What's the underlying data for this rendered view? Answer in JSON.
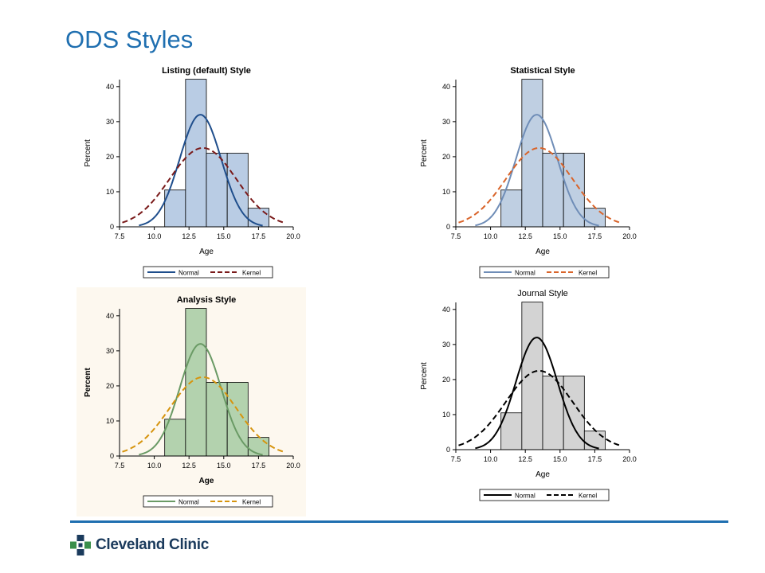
{
  "slide": {
    "title": "ODS Styles",
    "footer_logo_text": "Cleveland Clinic"
  },
  "chart_data": [
    {
      "type": "histogram",
      "title": "Listing (default) Style",
      "title_bold": true,
      "xlabel": "Age",
      "ylabel": "Percent",
      "xlim": [
        7.5,
        20.0
      ],
      "ylim": [
        0,
        42
      ],
      "xticks": [
        "7.5",
        "10.0",
        "12.5",
        "15.0",
        "17.5",
        "20.0"
      ],
      "yticks": [
        "0",
        "10",
        "20",
        "30",
        "40"
      ],
      "bins": [
        {
          "x0": 10.75,
          "x1": 12.25,
          "value": 10.5
        },
        {
          "x0": 12.25,
          "x1": 13.75,
          "value": 42.1
        },
        {
          "x0": 13.75,
          "x1": 15.25,
          "value": 21.0
        },
        {
          "x0": 15.25,
          "x1": 16.75,
          "value": 21.0
        },
        {
          "x0": 16.75,
          "x1": 18.25,
          "value": 5.3
        }
      ],
      "normal": {
        "mean": 13.32,
        "std": 1.49,
        "range": [
          8.9,
          17.8
        ],
        "peak": 32.0
      },
      "kernel": {
        "mean": 13.5,
        "std": 2.4,
        "range": [
          7.7,
          19.4
        ],
        "peak": 22.5
      },
      "legend": [
        {
          "label": "Normal"
        },
        {
          "label": "Kernel"
        }
      ],
      "colors": {
        "fill": "#b9cce4",
        "normal": "#1f4e8c",
        "kernel": "#7a1a1a",
        "axis": "#000000"
      },
      "bold_axis_labels": false
    },
    {
      "type": "histogram",
      "title": "Statistical Style",
      "title_bold": true,
      "xlabel": "Age",
      "ylabel": "Percent",
      "xlim": [
        7.5,
        20.0
      ],
      "ylim": [
        0,
        42
      ],
      "xticks": [
        "7.5",
        "10.0",
        "12.5",
        "15.0",
        "17.5",
        "20.0"
      ],
      "yticks": [
        "0",
        "10",
        "20",
        "30",
        "40"
      ],
      "bins": [
        {
          "x0": 10.75,
          "x1": 12.25,
          "value": 10.5
        },
        {
          "x0": 12.25,
          "x1": 13.75,
          "value": 42.1
        },
        {
          "x0": 13.75,
          "x1": 15.25,
          "value": 21.0
        },
        {
          "x0": 15.25,
          "x1": 16.75,
          "value": 21.0
        },
        {
          "x0": 16.75,
          "x1": 18.25,
          "value": 5.3
        }
      ],
      "normal": {
        "mean": 13.32,
        "std": 1.49,
        "range": [
          8.9,
          17.8
        ],
        "peak": 32.0
      },
      "kernel": {
        "mean": 13.5,
        "std": 2.4,
        "range": [
          7.7,
          19.4
        ],
        "peak": 22.5
      },
      "legend": [
        {
          "label": "Normal"
        },
        {
          "label": "Kernel"
        }
      ],
      "colors": {
        "fill": "#bfcfe2",
        "normal": "#6f8db7",
        "kernel": "#d9642a",
        "axis": "#000000"
      },
      "bold_axis_labels": false
    },
    {
      "type": "histogram",
      "title": "Analysis Style",
      "title_bold": true,
      "xlabel": "Age",
      "ylabel": "Percent",
      "xlim": [
        7.5,
        20.0
      ],
      "ylim": [
        0,
        42
      ],
      "xticks": [
        "7.5",
        "10.0",
        "12.5",
        "15.0",
        "17.5",
        "20.0"
      ],
      "yticks": [
        "0",
        "10",
        "20",
        "30",
        "40"
      ],
      "bins": [
        {
          "x0": 10.75,
          "x1": 12.25,
          "value": 10.5
        },
        {
          "x0": 12.25,
          "x1": 13.75,
          "value": 42.1
        },
        {
          "x0": 13.75,
          "x1": 15.25,
          "value": 21.0
        },
        {
          "x0": 15.25,
          "x1": 16.75,
          "value": 21.0
        },
        {
          "x0": 16.75,
          "x1": 18.25,
          "value": 5.3
        }
      ],
      "normal": {
        "mean": 13.32,
        "std": 1.49,
        "range": [
          8.9,
          17.8
        ],
        "peak": 32.0
      },
      "kernel": {
        "mean": 13.5,
        "std": 2.4,
        "range": [
          7.7,
          19.4
        ],
        "peak": 22.5
      },
      "legend": [
        {
          "label": "Normal"
        },
        {
          "label": "Kernel"
        }
      ],
      "colors": {
        "fill": "#b3d2ae",
        "normal": "#6a9a65",
        "kernel": "#d6940e",
        "axis": "#000000"
      },
      "bold_axis_labels": true
    },
    {
      "type": "histogram",
      "title": "Journal Style",
      "title_bold": false,
      "xlabel": "Age",
      "ylabel": "Percent",
      "xlim": [
        7.5,
        20.0
      ],
      "ylim": [
        0,
        42
      ],
      "xticks": [
        "7.5",
        "10.0",
        "12.5",
        "15.0",
        "17.5",
        "20.0"
      ],
      "yticks": [
        "0",
        "10",
        "20",
        "30",
        "40"
      ],
      "bins": [
        {
          "x0": 10.75,
          "x1": 12.25,
          "value": 10.5
        },
        {
          "x0": 12.25,
          "x1": 13.75,
          "value": 42.1
        },
        {
          "x0": 13.75,
          "x1": 15.25,
          "value": 21.0
        },
        {
          "x0": 15.25,
          "x1": 16.75,
          "value": 21.0
        },
        {
          "x0": 16.75,
          "x1": 18.25,
          "value": 5.3
        }
      ],
      "normal": {
        "mean": 13.32,
        "std": 1.49,
        "range": [
          8.9,
          17.8
        ],
        "peak": 32.0
      },
      "kernel": {
        "mean": 13.5,
        "std": 2.4,
        "range": [
          7.7,
          19.4
        ],
        "peak": 22.5
      },
      "legend": [
        {
          "label": "Normal"
        },
        {
          "label": "Kernel"
        }
      ],
      "colors": {
        "fill": "#d3d3d3",
        "normal": "#000000",
        "kernel": "#000000",
        "axis": "#000000"
      },
      "bold_axis_labels": false
    }
  ]
}
